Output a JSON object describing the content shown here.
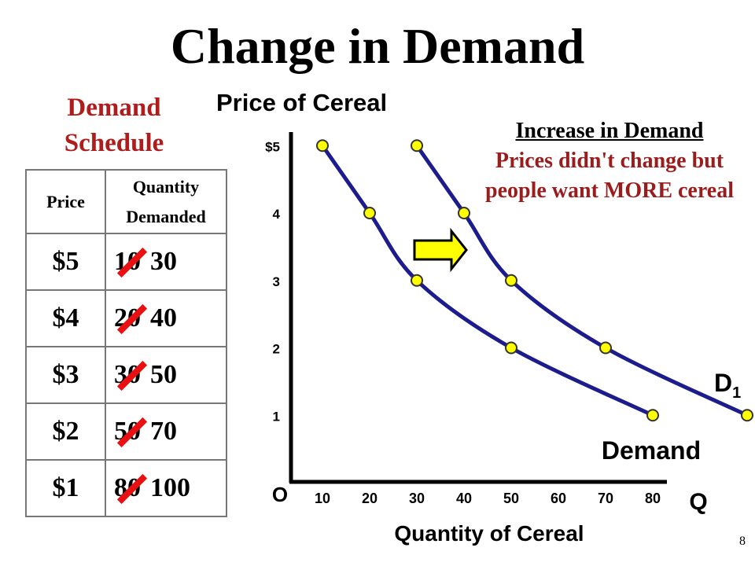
{
  "title": "Change in Demand",
  "schedule_title": "Demand Schedule",
  "table": {
    "headers": [
      "Price",
      "Quantity Demanded"
    ],
    "rows": [
      {
        "price": "$5",
        "old": "10",
        "new": "30"
      },
      {
        "price": "$4",
        "old": "20",
        "new": "40"
      },
      {
        "price": "$3",
        "old": "30",
        "new": "50"
      },
      {
        "price": "$2",
        "old": "50",
        "new": "70"
      },
      {
        "price": "$1",
        "old": "80",
        "new": "100"
      }
    ]
  },
  "note": {
    "heading": "Increase in Demand",
    "body": "Prices didn't change but people want MORE cereal"
  },
  "page_number": "8",
  "chart_data": {
    "type": "line",
    "ylabel": "Price of Cereal",
    "xlabel": "Quantity of Cereal",
    "origin_label": "O",
    "x_axis_letter": "Q",
    "x_ticks": [
      "10",
      "20",
      "30",
      "40",
      "50",
      "60",
      "70",
      "80"
    ],
    "y_ticks": [
      "$5",
      "4",
      "3",
      "2",
      "1"
    ],
    "xlim": [
      0,
      80
    ],
    "ylim": [
      0,
      5
    ],
    "series": [
      {
        "name": "Demand",
        "x": [
          10,
          20,
          30,
          50,
          80
        ],
        "y": [
          5,
          4,
          3,
          2,
          1
        ]
      },
      {
        "name": "D1",
        "x": [
          30,
          40,
          50,
          70,
          100
        ],
        "y": [
          5,
          4,
          3,
          2,
          1
        ]
      }
    ],
    "shift_arrow": "right",
    "colors": {
      "curve": "#1c1c8c",
      "points": "#ffff00",
      "arrow": "#ffff00",
      "note": "#9b1c1c",
      "strike": "#e81010"
    }
  }
}
